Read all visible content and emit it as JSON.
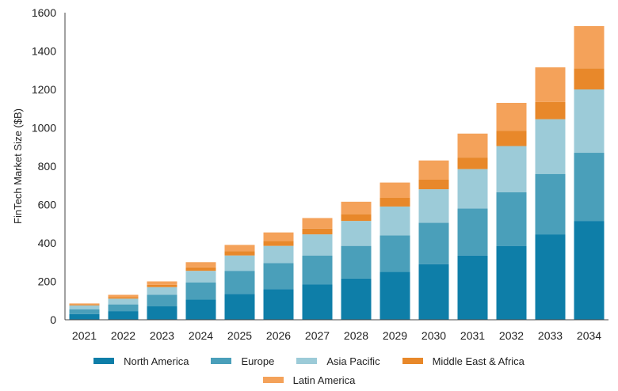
{
  "chart_data": {
    "type": "bar",
    "stacked": true,
    "title": "",
    "xlabel": "",
    "ylabel": "FinTech Market Size ($B)",
    "ylim": [
      0,
      1600
    ],
    "yticks": [
      "0",
      "200",
      "400",
      "600",
      "800",
      "1000",
      "1200",
      "1400",
      "1600"
    ],
    "grid": false,
    "legend_position": "bottom",
    "categories": [
      "2021",
      "2022",
      "2023",
      "2024",
      "2025",
      "2026",
      "2027",
      "2028",
      "2029",
      "2030",
      "2031",
      "2032",
      "2033",
      "2034"
    ],
    "series": [
      {
        "name": "North America",
        "color": "#0e7ea8",
        "values": [
          30,
          45,
          70,
          105,
          135,
          160,
          185,
          215,
          250,
          290,
          335,
          385,
          445,
          515
        ]
      },
      {
        "name": "Europe",
        "color": "#4a9fba",
        "values": [
          25,
          35,
          60,
          90,
          120,
          135,
          150,
          170,
          190,
          215,
          245,
          280,
          315,
          355
        ]
      },
      {
        "name": "Asia Pacific",
        "color": "#9ccbd8",
        "values": [
          20,
          30,
          40,
          60,
          80,
          90,
          110,
          130,
          150,
          175,
          205,
          240,
          285,
          330
        ]
      },
      {
        "name": "Middle East & Africa",
        "color": "#e8882a",
        "values": [
          5,
          8,
          12,
          18,
          22,
          25,
          30,
          35,
          45,
          50,
          60,
          80,
          90,
          110
        ]
      },
      {
        "name": "Latin America",
        "color": "#f4a25a",
        "values": [
          5,
          12,
          18,
          27,
          33,
          45,
          55,
          65,
          80,
          100,
          125,
          145,
          180,
          220
        ]
      }
    ]
  }
}
